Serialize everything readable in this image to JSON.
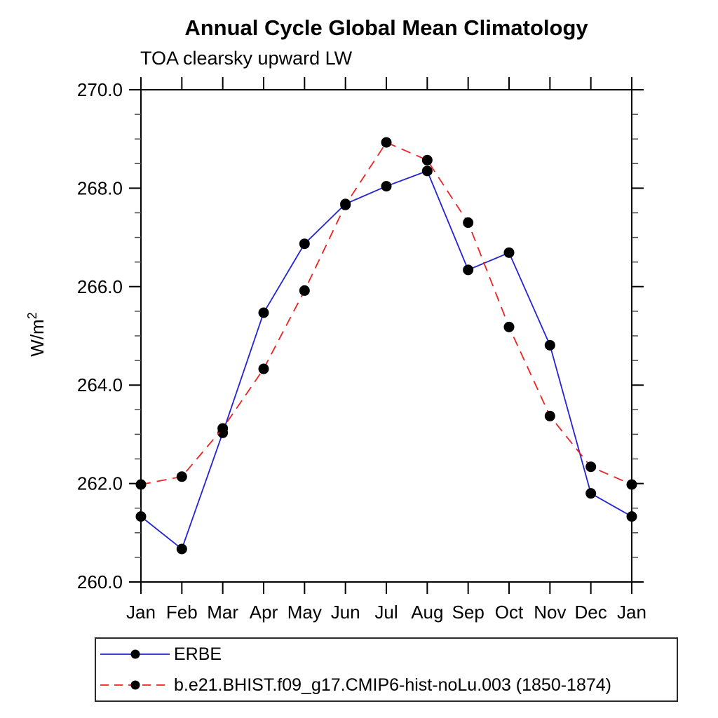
{
  "header": {
    "title": "Annual Cycle Global Mean Climatology",
    "subtitle": "TOA clearsky upward LW"
  },
  "chart_data": {
    "type": "line",
    "title": "Annual Cycle Global Mean Climatology",
    "subtitle": "TOA clearsky upward LW",
    "x": [
      "Jan",
      "Feb",
      "Mar",
      "Apr",
      "May",
      "Jun",
      "Jul",
      "Aug",
      "Sep",
      "Oct",
      "Nov",
      "Dec",
      "Jan"
    ],
    "series": [
      {
        "name": "ERBE",
        "color": "#2222d6",
        "line_style": "solid",
        "marker": "circle",
        "marker_color": "#000000",
        "values": [
          261.33,
          260.67,
          263.03,
          265.47,
          266.87,
          267.68,
          268.04,
          268.35,
          266.34,
          266.69,
          264.81,
          261.8,
          261.33
        ]
      },
      {
        "name": "b.e21.BHIST.f09_g17.CMIP6-hist-noLu.003 (1850-1874)",
        "color": "#ee2222",
        "line_style": "dashed",
        "marker": "circle",
        "marker_color": "#000000",
        "values": [
          261.98,
          262.14,
          263.12,
          264.33,
          265.92,
          267.66,
          268.93,
          268.57,
          267.3,
          265.18,
          263.37,
          262.34,
          261.98
        ]
      }
    ],
    "xlabel": "",
    "ylabel": "W/m²",
    "ylabel_base": "W/m",
    "ylabel_exponent": "2",
    "ylim": [
      260.0,
      270.0
    ],
    "ytick_values": [
      260.0,
      262.0,
      264.0,
      266.0,
      268.0,
      270.0
    ],
    "ytick_labels": [
      "260.0",
      "262.0",
      "264.0",
      "266.0",
      "268.0",
      "270.0"
    ],
    "yminor_step": 0.5,
    "grid": "off",
    "frame": "box with outward ticks",
    "legend_position": "bottom-left"
  },
  "legend": {
    "entries": [
      {
        "label": "ERBE"
      },
      {
        "label": "b.e21.BHIST.f09_g17.CMIP6-hist-noLu.003 (1850-1874)"
      }
    ]
  },
  "colors": {
    "axis": "#000000",
    "minor_tick": "#4a4a4a",
    "marker": "#000000",
    "background": "#ffffff"
  }
}
